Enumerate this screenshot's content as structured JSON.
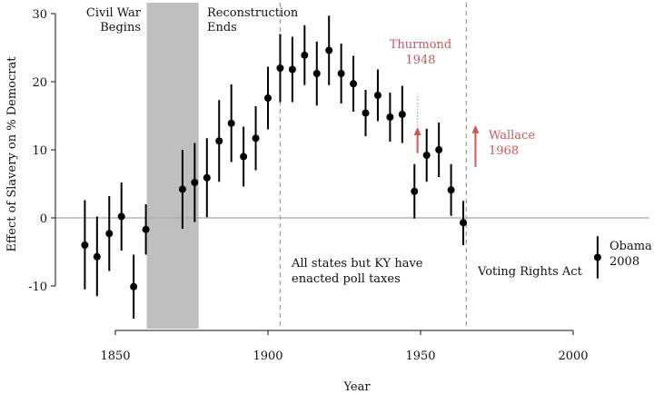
{
  "chart_data": {
    "type": "scatter",
    "xlabel": "Year",
    "ylabel": "Effect of Slavery on % Democrat",
    "xlim": [
      1830,
      2025
    ],
    "ylim": [
      -15,
      30
    ],
    "x_ticks": [
      1850,
      1900,
      1950,
      2000
    ],
    "y_ticks": [
      -10,
      0,
      10,
      20,
      30
    ],
    "y_tick_labels": [
      "-10",
      "0",
      "10",
      "20",
      "30"
    ],
    "zero_line": 0,
    "shaded_range": [
      1860,
      1877
    ],
    "vlines": [
      1904,
      1965
    ],
    "series": [
      {
        "color": "#000000",
        "points": [
          {
            "x": 1840,
            "y": -4.0,
            "lo": -10.5,
            "hi": 2.6
          },
          {
            "x": 1844,
            "y": -5.7,
            "lo": -11.5,
            "hi": 0.2
          },
          {
            "x": 1848,
            "y": -2.3,
            "lo": -7.8,
            "hi": 3.2
          },
          {
            "x": 1852,
            "y": 0.2,
            "lo": -4.8,
            "hi": 5.2
          },
          {
            "x": 1856,
            "y": -10.1,
            "lo": -14.8,
            "hi": -5.4
          },
          {
            "x": 1860,
            "y": -1.7,
            "lo": -5.4,
            "hi": 2.0
          },
          {
            "x": 1872,
            "y": 4.2,
            "lo": -1.6,
            "hi": 10.0
          },
          {
            "x": 1876,
            "y": 5.2,
            "lo": -0.6,
            "hi": 11.0
          },
          {
            "x": 1880,
            "y": 5.9,
            "lo": 0.1,
            "hi": 11.7
          },
          {
            "x": 1884,
            "y": 11.3,
            "lo": 5.3,
            "hi": 17.3
          },
          {
            "x": 1888,
            "y": 13.9,
            "lo": 8.2,
            "hi": 19.6
          },
          {
            "x": 1892,
            "y": 9.0,
            "lo": 4.6,
            "hi": 13.4
          },
          {
            "x": 1896,
            "y": 11.7,
            "lo": 7.0,
            "hi": 16.4
          },
          {
            "x": 1900,
            "y": 17.6,
            "lo": 13.0,
            "hi": 22.2
          },
          {
            "x": 1904,
            "y": 22.0,
            "lo": 17.0,
            "hi": 27.0
          },
          {
            "x": 1908,
            "y": 21.8,
            "lo": 17.0,
            "hi": 26.6
          },
          {
            "x": 1912,
            "y": 23.9,
            "lo": 19.5,
            "hi": 28.3
          },
          {
            "x": 1916,
            "y": 21.2,
            "lo": 16.5,
            "hi": 25.9
          },
          {
            "x": 1920,
            "y": 24.6,
            "lo": 19.5,
            "hi": 29.7
          },
          {
            "x": 1924,
            "y": 21.2,
            "lo": 16.8,
            "hi": 25.6
          },
          {
            "x": 1928,
            "y": 19.7,
            "lo": 15.6,
            "hi": 23.8
          },
          {
            "x": 1932,
            "y": 15.4,
            "lo": 12.0,
            "hi": 18.8
          },
          {
            "x": 1936,
            "y": 18.0,
            "lo": 14.2,
            "hi": 21.8
          },
          {
            "x": 1940,
            "y": 14.8,
            "lo": 11.2,
            "hi": 18.4
          },
          {
            "x": 1944,
            "y": 15.2,
            "lo": 11.0,
            "hi": 19.4
          },
          {
            "x": 1948,
            "y": 3.9,
            "lo": -0.1,
            "hi": 7.9
          },
          {
            "x": 1952,
            "y": 9.2,
            "lo": 5.3,
            "hi": 13.1
          },
          {
            "x": 1956,
            "y": 10.0,
            "lo": 6.0,
            "hi": 14.0
          },
          {
            "x": 1960,
            "y": 4.1,
            "lo": 0.3,
            "hi": 7.9
          },
          {
            "x": 1964,
            "y": -0.7,
            "lo": -4.0,
            "hi": 2.5
          },
          {
            "x": 2008,
            "y": -5.8,
            "lo": -8.9,
            "hi": -2.7
          }
        ]
      }
    ],
    "red_arrows": [
      {
        "x": 1949,
        "from": 9.5,
        "to": 13.2,
        "dotted_to": 18.2
      },
      {
        "x": 1968,
        "from": 7.5,
        "to": 13.5
      }
    ],
    "annotations": {
      "civil_war": [
        "Civil War",
        "Begins"
      ],
      "reconstruction": [
        "Reconstruction",
        "Ends"
      ],
      "poll_taxes": [
        "All states but KY have",
        "enacted poll taxes"
      ],
      "voting_rights": "Voting Rights Act",
      "thurmond": [
        "Thurmond",
        "1948"
      ],
      "wallace": [
        "Wallace",
        "1968"
      ],
      "obama": [
        "Obama",
        "2008"
      ]
    },
    "colors": {
      "points": "#000000",
      "shading": "#bfbfbf",
      "vline": "#a6a6a6",
      "zero_line": "#a6a6a6",
      "accent": "#c8595b"
    }
  }
}
